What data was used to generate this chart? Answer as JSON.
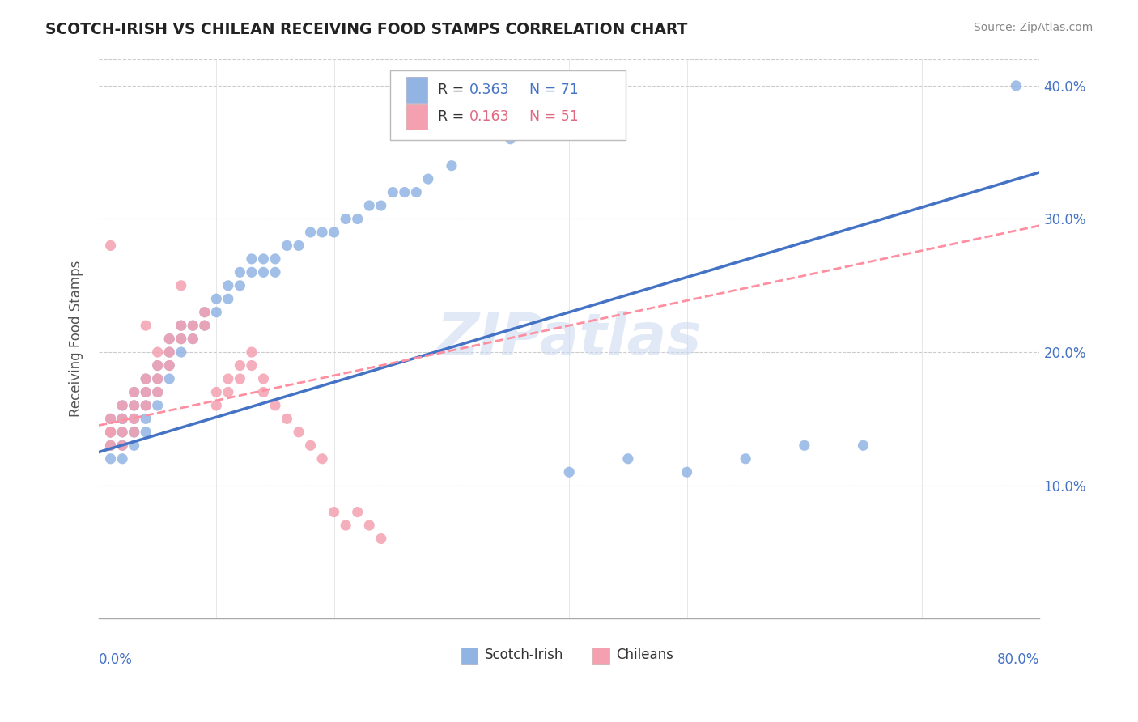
{
  "title": "SCOTCH-IRISH VS CHILEAN RECEIVING FOOD STAMPS CORRELATION CHART",
  "source": "Source: ZipAtlas.com",
  "ylabel": "Receiving Food Stamps",
  "xlim": [
    0.0,
    80.0
  ],
  "ylim": [
    0.0,
    42.0
  ],
  "yticks": [
    10.0,
    20.0,
    30.0,
    40.0
  ],
  "legend_r1": "R = 0.363",
  "legend_n1": "N = 71",
  "legend_r2": "R = 0.163",
  "legend_n2": "N = 51",
  "scotch_irish_color": "#92b4e3",
  "chilean_color": "#f4a0b0",
  "trendline_scotch_color": "#4472C4",
  "trendline_chilean_color": "#FF8FA0",
  "watermark": "ZIPatlas",
  "scotch_irish_x": [
    1,
    1,
    1,
    1,
    1,
    2,
    2,
    2,
    2,
    2,
    2,
    3,
    3,
    3,
    3,
    3,
    3,
    4,
    4,
    4,
    4,
    4,
    5,
    5,
    5,
    5,
    6,
    6,
    6,
    6,
    7,
    7,
    7,
    8,
    8,
    9,
    9,
    10,
    10,
    11,
    11,
    12,
    12,
    13,
    13,
    14,
    14,
    15,
    15,
    16,
    17,
    18,
    19,
    20,
    21,
    22,
    23,
    24,
    25,
    26,
    27,
    28,
    30,
    35,
    40,
    45,
    50,
    55,
    60,
    65,
    78
  ],
  "scotch_irish_y": [
    14,
    15,
    14,
    13,
    12,
    15,
    14,
    16,
    15,
    13,
    12,
    16,
    17,
    15,
    14,
    13,
    14,
    18,
    17,
    16,
    15,
    14,
    19,
    18,
    17,
    16,
    20,
    21,
    19,
    18,
    22,
    21,
    20,
    22,
    21,
    23,
    22,
    24,
    23,
    25,
    24,
    26,
    25,
    27,
    26,
    27,
    26,
    27,
    26,
    28,
    28,
    29,
    29,
    29,
    30,
    30,
    31,
    31,
    32,
    32,
    32,
    33,
    34,
    36,
    11,
    12,
    11,
    12,
    13,
    13,
    40
  ],
  "chilean_x": [
    1,
    1,
    1,
    1,
    1,
    2,
    2,
    2,
    2,
    3,
    3,
    3,
    3,
    4,
    4,
    4,
    4,
    5,
    5,
    5,
    5,
    6,
    6,
    6,
    7,
    7,
    7,
    8,
    8,
    9,
    9,
    10,
    10,
    11,
    11,
    12,
    12,
    13,
    13,
    14,
    14,
    15,
    16,
    17,
    18,
    19,
    20,
    21,
    22,
    23,
    24
  ],
  "chilean_y": [
    14,
    15,
    14,
    13,
    28,
    16,
    15,
    14,
    13,
    17,
    16,
    15,
    14,
    18,
    17,
    16,
    22,
    19,
    20,
    18,
    17,
    21,
    20,
    19,
    22,
    21,
    25,
    22,
    21,
    23,
    22,
    17,
    16,
    18,
    17,
    19,
    18,
    20,
    19,
    18,
    17,
    16,
    15,
    14,
    13,
    12,
    8,
    7,
    8,
    7,
    6
  ],
  "trendline_scotch_x0": 0,
  "trendline_scotch_y0": 12.5,
  "trendline_scotch_x1": 80,
  "trendline_scotch_y1": 33.5,
  "trendline_chilean_x0": 0,
  "trendline_chilean_y0": 14.5,
  "trendline_chilean_x1": 80,
  "trendline_chilean_y1": 29.5
}
